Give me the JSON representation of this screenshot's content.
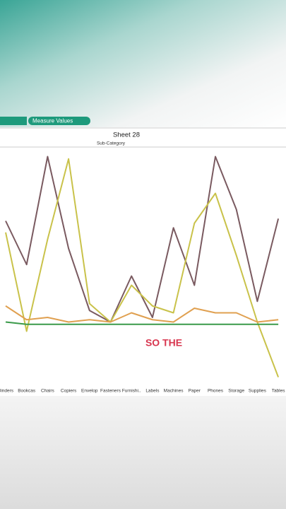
{
  "pill": "Measure Values",
  "caption": "SO THE",
  "chart_data": {
    "type": "line",
    "title": "Sheet 28",
    "x_label": "Sub-Category",
    "categories": [
      "Binders",
      "Bookcas",
      "Chairs",
      "Copiers",
      "Envelop",
      "Fasteners",
      "Furnishi..",
      "Labels",
      "Machines",
      "Paper",
      "Phones",
      "Storage",
      "Supplies",
      "Tables"
    ],
    "ylim": [
      0,
      100
    ],
    "series": [
      {
        "color": "#7a5a60",
        "values": [
          70,
          51,
          98,
          58,
          31,
          26,
          46,
          28,
          67,
          42,
          98,
          75,
          35,
          71
        ]
      },
      {
        "color": "#c9c24a",
        "values": [
          65,
          22,
          62,
          97,
          34,
          26,
          42,
          33,
          30,
          69,
          82,
          55,
          26,
          2
        ]
      },
      {
        "color": "#e0a050",
        "values": [
          33,
          27,
          28,
          26,
          27,
          26,
          30,
          27,
          26,
          32,
          30,
          30,
          26,
          27
        ]
      },
      {
        "color": "#3a9a4a",
        "values": [
          26,
          25,
          25,
          25,
          25,
          25,
          25,
          25,
          25,
          25,
          25,
          25,
          25,
          25
        ]
      }
    ]
  }
}
